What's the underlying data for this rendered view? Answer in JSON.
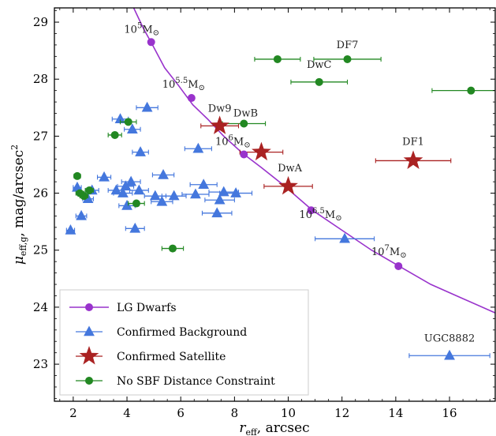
{
  "chart_data": {
    "type": "scatter",
    "xlabel_main": "r",
    "xlabel_sub": "eff",
    "xlabel_rest": ", arcsec",
    "ylabel_main": "μ",
    "ylabel_sub": "eff,g",
    "ylabel_rest": ", mag/arcsec",
    "ylabel_sup": "2",
    "xlim": [
      1.3,
      17.7
    ],
    "ylim": [
      22.35,
      29.25
    ],
    "y_inverted": false,
    "xticks": [
      2,
      4,
      6,
      8,
      10,
      12,
      14,
      16
    ],
    "yticks": [
      23,
      24,
      25,
      26,
      27,
      28,
      29
    ],
    "grid": false,
    "legend_position": "lower-left",
    "colors": {
      "lg": "#9933cc",
      "background": "#4477dd",
      "satellite": "#aa2222",
      "nosbf": "#228822"
    },
    "series": [
      {
        "name": "LG Dwarfs",
        "marker": "circle-line",
        "curve_x": [
          1.3,
          1.8,
          2.3,
          2.8,
          3.3,
          3.8,
          4.2,
          4.6,
          4.95,
          5.4,
          5.9,
          6.45,
          7.0,
          7.6,
          8.3,
          9.0,
          9.8,
          10.9,
          12.0,
          13.1,
          14.2,
          15.3,
          16.5,
          17.7
        ],
        "curve_y": [
          34.4,
          33.2,
          32.2,
          31.3,
          30.5,
          29.8,
          29.3,
          28.9,
          28.6,
          28.2,
          27.9,
          27.55,
          27.3,
          27.0,
          26.7,
          26.45,
          26.15,
          25.7,
          25.35,
          25.0,
          24.7,
          24.4,
          24.15,
          23.9
        ],
        "points": [
          {
            "x": 4.9,
            "y": 28.65,
            "label_base": "10",
            "label_exp": "5",
            "label_unit": "M",
            "label_sub": "⊙"
          },
          {
            "x": 6.4,
            "y": 27.67,
            "label_base": "10",
            "label_exp": "5.5",
            "label_unit": "M",
            "label_sub": "⊙"
          },
          {
            "x": 8.35,
            "y": 26.68,
            "label_base": "10",
            "label_exp": "6",
            "label_unit": "M",
            "label_sub": "⊙"
          },
          {
            "x": 10.85,
            "y": 25.7,
            "label_base": "10",
            "label_exp": "6.5",
            "label_unit": "M",
            "label_sub": "⊙"
          },
          {
            "x": 14.1,
            "y": 24.72,
            "label_base": "10",
            "label_exp": "7",
            "label_unit": "M",
            "label_sub": "⊙"
          }
        ]
      },
      {
        "name": "Confirmed Background",
        "marker": "triangle",
        "points": [
          {
            "x": 1.9,
            "y": 25.35,
            "xerr": 0.15
          },
          {
            "x": 2.15,
            "y": 26.1,
            "xerr": 0.15
          },
          {
            "x": 2.3,
            "y": 25.6,
            "xerr": 0.2
          },
          {
            "x": 2.55,
            "y": 25.9,
            "xerr": 0.2
          },
          {
            "x": 2.7,
            "y": 26.05,
            "xerr": 0.25
          },
          {
            "x": 3.15,
            "y": 26.28,
            "xerr": 0.25
          },
          {
            "x": 3.6,
            "y": 26.05,
            "xerr": 0.3
          },
          {
            "x": 3.75,
            "y": 27.3,
            "xerr": 0.3
          },
          {
            "x": 3.85,
            "y": 26.0,
            "xerr": 0.35
          },
          {
            "x": 3.95,
            "y": 26.12,
            "xerr": 0.3
          },
          {
            "x": 4.0,
            "y": 25.78,
            "xerr": 0.3
          },
          {
            "x": 4.15,
            "y": 26.2,
            "xerr": 0.35
          },
          {
            "x": 4.2,
            "y": 27.12,
            "xerr": 0.3
          },
          {
            "x": 4.3,
            "y": 25.38,
            "xerr": 0.35
          },
          {
            "x": 4.45,
            "y": 26.05,
            "xerr": 0.35
          },
          {
            "x": 4.5,
            "y": 26.72,
            "xerr": 0.3
          },
          {
            "x": 4.75,
            "y": 27.5,
            "xerr": 0.4
          },
          {
            "x": 5.05,
            "y": 25.95,
            "xerr": 0.4
          },
          {
            "x": 5.3,
            "y": 25.85,
            "xerr": 0.4
          },
          {
            "x": 5.35,
            "y": 26.32,
            "xerr": 0.4
          },
          {
            "x": 5.75,
            "y": 25.95,
            "xerr": 0.45
          },
          {
            "x": 6.55,
            "y": 25.98,
            "xerr": 0.5
          },
          {
            "x": 6.65,
            "y": 26.78,
            "xerr": 0.5
          },
          {
            "x": 6.85,
            "y": 26.15,
            "xerr": 0.5
          },
          {
            "x": 7.35,
            "y": 25.65,
            "xerr": 0.55
          },
          {
            "x": 7.45,
            "y": 25.88,
            "xerr": 0.55
          },
          {
            "x": 7.6,
            "y": 26.02,
            "xerr": 0.55
          },
          {
            "x": 8.05,
            "y": 26.0,
            "xerr": 0.6
          },
          {
            "x": 12.1,
            "y": 25.2,
            "xerr": 1.1
          },
          {
            "x": 16.0,
            "y": 23.15,
            "xerr": 1.5,
            "label": "UGC8882"
          }
        ]
      },
      {
        "name": "Confirmed Satellite",
        "marker": "star",
        "points": [
          {
            "x": 7.45,
            "y": 27.18,
            "xerr": 0.7,
            "label": "Dw9"
          },
          {
            "x": 9.0,
            "y": 26.72,
            "xerr": 0.8,
            "label": "DwB"
          },
          {
            "x": 10.0,
            "y": 26.12,
            "xerr": 0.9,
            "label": "DwA"
          },
          {
            "x": 14.65,
            "y": 26.57,
            "xerr": 1.4,
            "label": "DF1"
          }
        ]
      },
      {
        "name": "No SBF Distance Constraint",
        "marker": "circle",
        "points": [
          {
            "x": 2.15,
            "y": 26.3,
            "xerr": 0.12
          },
          {
            "x": 2.25,
            "y": 26.0,
            "xerr": 0.15
          },
          {
            "x": 2.4,
            "y": 25.95,
            "xerr": 0.15
          },
          {
            "x": 2.6,
            "y": 26.05,
            "xerr": 0.15
          },
          {
            "x": 3.55,
            "y": 27.02,
            "xerr": 0.25
          },
          {
            "x": 4.05,
            "y": 27.25,
            "xerr": 0.3
          },
          {
            "x": 4.35,
            "y": 25.82,
            "xerr": 0.3
          },
          {
            "x": 5.7,
            "y": 25.03,
            "xerr": 0.4
          },
          {
            "x": 8.35,
            "y": 27.22,
            "xerr": 0.8
          },
          {
            "x": 9.6,
            "y": 28.35,
            "xerr": 0.85
          },
          {
            "x": 11.15,
            "y": 27.95,
            "xerr": 1.05
          },
          {
            "x": 12.2,
            "y": 28.35,
            "xerr": 1.25,
            "label": "DF7"
          },
          {
            "x": 16.8,
            "y": 27.8,
            "xerr": 1.45
          }
        ]
      }
    ],
    "annotations": [
      {
        "text": "DwC",
        "x": 11.15,
        "y": 28.2
      }
    ]
  }
}
